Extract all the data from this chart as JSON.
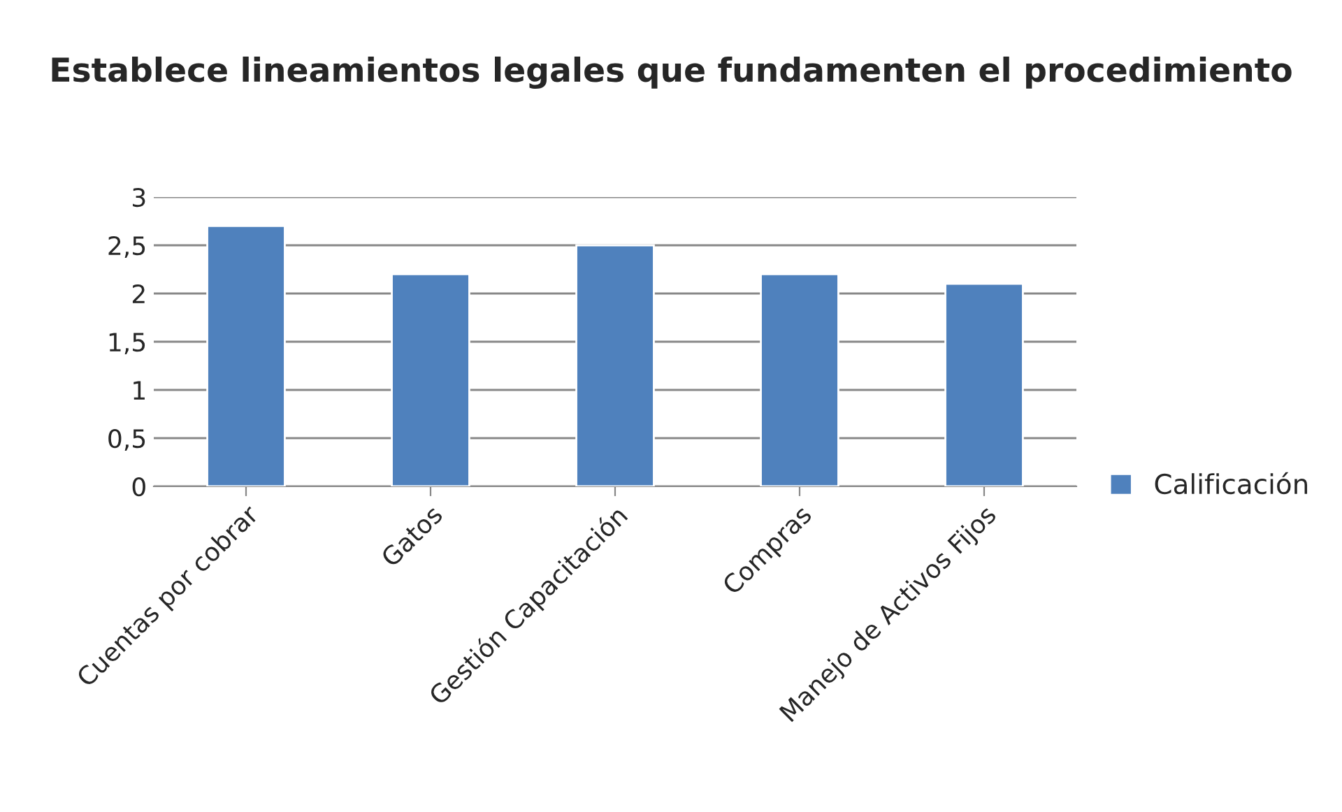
{
  "chart_data": {
    "type": "bar",
    "title": "Establece lineamientos legales que fundamenten el procedimiento",
    "categories": [
      "Cuentas por cobrar",
      "Gatos",
      "Gestión Capacitación",
      "Compras",
      "Manejo de Activos Fijos"
    ],
    "series": [
      {
        "name": "Calificación",
        "color": "#4f81bd",
        "values": [
          2.7,
          2.2,
          2.5,
          2.2,
          2.1
        ]
      }
    ],
    "ylim": [
      0,
      3
    ],
    "yticks": [
      0,
      {
        "value": 0.5,
        "label": "0,5"
      },
      1,
      {
        "value": 1.5,
        "label": "1,5"
      },
      2,
      {
        "value": 2.5,
        "label": "2,5"
      },
      3
    ],
    "grid": "y",
    "legend": "right"
  }
}
